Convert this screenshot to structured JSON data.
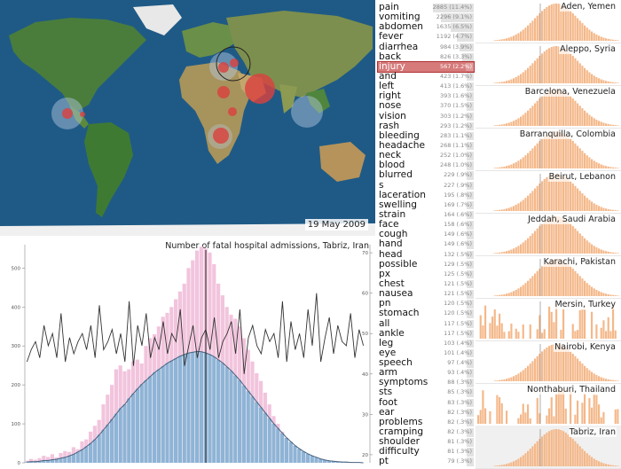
{
  "map": {
    "date": "19 May 2009",
    "colors": {
      "ocean": "#1f5a86",
      "land": "#4a7d3c",
      "bubble": "#d9423f",
      "halo": "#b9cbe4"
    }
  },
  "terms": [
    {
      "term": "pain",
      "count": "2885 (11.4%)",
      "share": 11.4
    },
    {
      "term": "vomiting",
      "count": "2296 (9.1%)",
      "share": 9.1
    },
    {
      "term": "abdomen",
      "count": "1635 (6.5%)",
      "share": 6.5
    },
    {
      "term": "fever",
      "count": "1192 (4.7%)",
      "share": 4.7
    },
    {
      "term": "diarrhea",
      "count": "984 (3.9%)",
      "share": 3.9
    },
    {
      "term": "back",
      "count": "826 (3.3%)",
      "share": 3.3
    },
    {
      "term": "injury",
      "count": "567 (2.2%)",
      "share": 2.2,
      "selected": true
    },
    {
      "term": "and",
      "count": "423 (1.7%)",
      "share": 1.7
    },
    {
      "term": "left",
      "count": "413 (1.6%)",
      "share": 1.6
    },
    {
      "term": "right",
      "count": "393 (1.6%)",
      "share": 1.6
    },
    {
      "term": "nose",
      "count": "370 (1.5%)",
      "share": 1.5
    },
    {
      "term": "vision",
      "count": "303 (1.2%)",
      "share": 1.2
    },
    {
      "term": "rash",
      "count": "293 (1.2%)",
      "share": 1.2
    },
    {
      "term": "bleeding",
      "count": "283 (1.1%)",
      "share": 1.1
    },
    {
      "term": "headache",
      "count": "268 (1.1%)",
      "share": 1.1
    },
    {
      "term": "neck",
      "count": "252 (1.0%)",
      "share": 1.0
    },
    {
      "term": "blood",
      "count": "248 (1.0%)",
      "share": 1.0
    },
    {
      "term": "blurred",
      "count": "229 (.9%)",
      "share": 0.9
    },
    {
      "term": "s",
      "count": "227 (.9%)",
      "share": 0.9
    },
    {
      "term": "laceration",
      "count": "195 (.8%)",
      "share": 0.8
    },
    {
      "term": "swelling",
      "count": "169 (.7%)",
      "share": 0.7
    },
    {
      "term": "strain",
      "count": "164 (.6%)",
      "share": 0.6
    },
    {
      "term": "face",
      "count": "158 (.6%)",
      "share": 0.6
    },
    {
      "term": "cough",
      "count": "149 (.6%)",
      "share": 0.6
    },
    {
      "term": "hand",
      "count": "149 (.6%)",
      "share": 0.6
    },
    {
      "term": "head",
      "count": "132 (.5%)",
      "share": 0.5
    },
    {
      "term": "possible",
      "count": "129 (.5%)",
      "share": 0.5
    },
    {
      "term": "px",
      "count": "125 (.5%)",
      "share": 0.5
    },
    {
      "term": "chest",
      "count": "121 (.5%)",
      "share": 0.5
    },
    {
      "term": "nausea",
      "count": "121 (.5%)",
      "share": 0.5
    },
    {
      "term": "pn",
      "count": "120 (.5%)",
      "share": 0.5
    },
    {
      "term": "stomach",
      "count": "120 (.5%)",
      "share": 0.5
    },
    {
      "term": "all",
      "count": "117 (.5%)",
      "share": 0.5
    },
    {
      "term": "ankle",
      "count": "117 (.5%)",
      "share": 0.5
    },
    {
      "term": "leg",
      "count": "103 (.4%)",
      "share": 0.4
    },
    {
      "term": "eye",
      "count": "101 (.4%)",
      "share": 0.4
    },
    {
      "term": "speech",
      "count": "97 (.4%)",
      "share": 0.4
    },
    {
      "term": "arm",
      "count": "93 (.4%)",
      "share": 0.4
    },
    {
      "term": "symptoms",
      "count": "88 (.3%)",
      "share": 0.3
    },
    {
      "term": "sts",
      "count": "85 (.3%)",
      "share": 0.3
    },
    {
      "term": "foot",
      "count": "83 (.3%)",
      "share": 0.3
    },
    {
      "term": "ear",
      "count": "82 (.3%)",
      "share": 0.3
    },
    {
      "term": "problems",
      "count": "82 (.3%)",
      "share": 0.3
    },
    {
      "term": "cramping",
      "count": "82 (.3%)",
      "share": 0.3
    },
    {
      "term": "shoulder",
      "count": "81 (.3%)",
      "share": 0.3
    },
    {
      "term": "difficulty",
      "count": "81 (.3%)",
      "share": 0.3
    },
    {
      "term": "pt",
      "count": "79 (.3%)",
      "share": 0.3
    }
  ],
  "cities": [
    {
      "name": "Aden, Yemen",
      "shape": "bell"
    },
    {
      "name": "Aleppo, Syria",
      "shape": "bell"
    },
    {
      "name": "Barcelona, Venezuela",
      "shape": "bell"
    },
    {
      "name": "Barranquilla, Colombia",
      "shape": "bell"
    },
    {
      "name": "Beirut, Lebanon",
      "shape": "bell"
    },
    {
      "name": "Jeddah, Saudi Arabia",
      "shape": "bell"
    },
    {
      "name": "Karachi, Pakistan",
      "shape": "bell"
    },
    {
      "name": "Mersin, Turkey",
      "shape": "noise"
    },
    {
      "name": "Nairobi, Kenya",
      "shape": "bell"
    },
    {
      "name": "Nonthaburi, Thailand",
      "shape": "noise"
    },
    {
      "name": "Tabriz, Iran",
      "shape": "bell",
      "selected": true
    }
  ],
  "city_bar_color": "#f4b88a",
  "chart_data": {
    "type": "bar",
    "title": "Number of fatal hospital admissions, Tabriz, Iran",
    "left_axis": {
      "ylim": [
        0,
        560
      ],
      "ticks": [
        0,
        100,
        200,
        300,
        400,
        500
      ]
    },
    "right_axis": {
      "ylim": [
        18,
        72
      ],
      "ticks": [
        20,
        30,
        40,
        50,
        60,
        70
      ]
    },
    "series": [
      {
        "color": "#f2c4dd",
        "values": [
          5,
          10,
          8,
          12,
          18,
          15,
          22,
          14,
          25,
          30,
          28,
          40,
          35,
          55,
          60,
          80,
          95,
          110,
          150,
          175,
          200,
          240,
          250,
          235,
          240,
          260,
          265,
          255,
          300,
          320,
          330,
          350,
          375,
          385,
          400,
          420,
          440,
          460,
          500,
          520,
          545,
          555,
          550,
          540,
          510,
          460,
          430,
          400,
          380,
          370,
          350,
          320,
          290,
          260,
          230,
          210,
          180,
          150,
          120,
          100,
          80,
          60,
          45,
          30,
          25,
          20,
          15,
          12,
          10,
          8,
          6,
          5,
          4,
          3,
          2,
          2,
          2,
          1,
          1,
          0
        ]
      },
      {
        "color": "#8eb4d6",
        "values": [
          2,
          3,
          3,
          4,
          6,
          6,
          8,
          9,
          12,
          14,
          18,
          22,
          28,
          34,
          42,
          50,
          60,
          72,
          85,
          98,
          112,
          126,
          140,
          150,
          165,
          178,
          190,
          202,
          212,
          222,
          232,
          240,
          248,
          256,
          262,
          268,
          274,
          278,
          282,
          284,
          286,
          285,
          282,
          278,
          272,
          264,
          256,
          246,
          236,
          224,
          212,
          198,
          184,
          170,
          156,
          142,
          128,
          114,
          100,
          88,
          76,
          64,
          54,
          44,
          36,
          29,
          23,
          18,
          14,
          10,
          7,
          5,
          4,
          3,
          2,
          2,
          1,
          1,
          1,
          0
        ]
      },
      {
        "color": "#333333",
        "values": [
          43,
          46,
          48,
          44,
          52,
          47,
          50,
          44,
          55,
          43,
          49,
          45,
          48,
          50,
          46,
          52,
          44,
          57,
          46,
          48,
          51,
          45,
          50,
          43,
          58,
          42,
          52,
          47,
          55,
          44,
          49,
          46,
          53,
          45,
          50,
          48,
          56,
          42,
          47,
          52,
          44,
          49,
          51,
          46,
          54,
          44,
          48,
          50,
          53,
          45,
          56,
          40,
          49,
          52,
          47,
          45,
          51,
          48,
          50,
          44,
          58,
          43,
          53,
          46,
          50,
          44,
          56,
          47,
          60,
          43,
          49,
          54,
          45,
          52,
          48,
          47,
          55,
          44,
          51,
          47
        ]
      }
    ],
    "current_index": 42
  }
}
